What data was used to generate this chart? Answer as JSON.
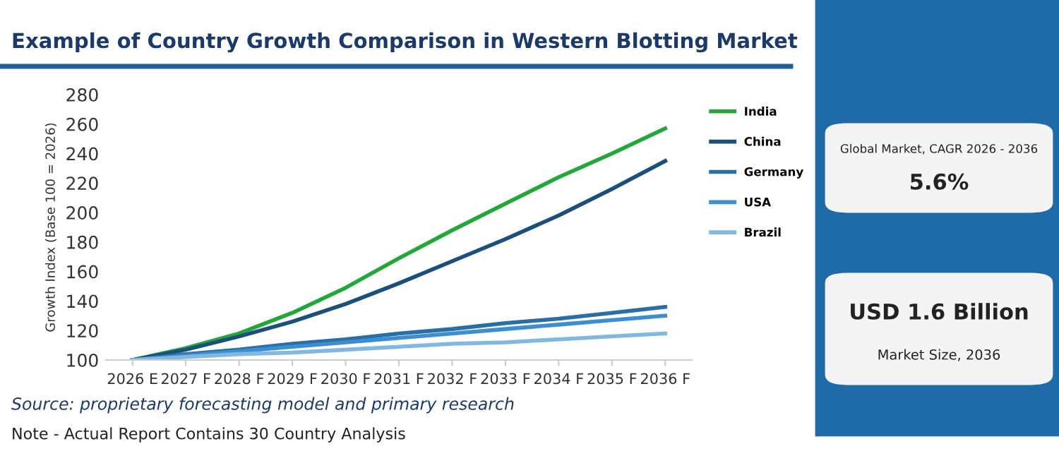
{
  "chart_data": {
    "type": "line",
    "title": "Example of Country Growth Comparison in Western Blotting Market",
    "ylabel": "Growth Index (Base 100 = 2026)",
    "categories": [
      "2026 E",
      "2027 F",
      "2028 F",
      "2029 F",
      "2030 F",
      "2031 F",
      "2032 F",
      "2033 F",
      "2034 F",
      "2035 F",
      "2036 F"
    ],
    "series": [
      {
        "name": "India",
        "color": "#22a83a",
        "values": [
          100,
          108,
          118,
          132,
          149,
          169,
          188,
          206,
          224,
          240,
          257
        ]
      },
      {
        "name": "China",
        "color": "#1b4f7c",
        "values": [
          100,
          107,
          116,
          126,
          138,
          152,
          167,
          182,
          198,
          216,
          235
        ]
      },
      {
        "name": "Germany",
        "color": "#2a6ea6",
        "values": [
          100,
          104,
          107,
          111,
          114,
          118,
          121,
          125,
          128,
          132,
          136
        ]
      },
      {
        "name": "USA",
        "color": "#3b8fd0",
        "values": [
          100,
          103,
          106,
          109,
          112,
          115,
          118,
          121,
          124,
          127,
          130
        ]
      },
      {
        "name": "Brazil",
        "color": "#80b8e2",
        "values": [
          100,
          102,
          104,
          105,
          107,
          109,
          111,
          112,
          114,
          116,
          118
        ]
      }
    ],
    "ylim": [
      100,
      280
    ],
    "yticks": [
      100,
      120,
      140,
      160,
      180,
      200,
      220,
      240,
      260,
      280
    ],
    "grid": false,
    "legend": "right",
    "marker": "none",
    "line_style": "solid",
    "annotations": [
      "Source: proprietary forecasting model and primary research",
      "Note - Actual Report Contains 30 Country Analysis",
      "Global Market, CAGR 2026 - 2036",
      "5.6%",
      "USD 1.6 Billion",
      "Market Size, 2036"
    ]
  }
}
